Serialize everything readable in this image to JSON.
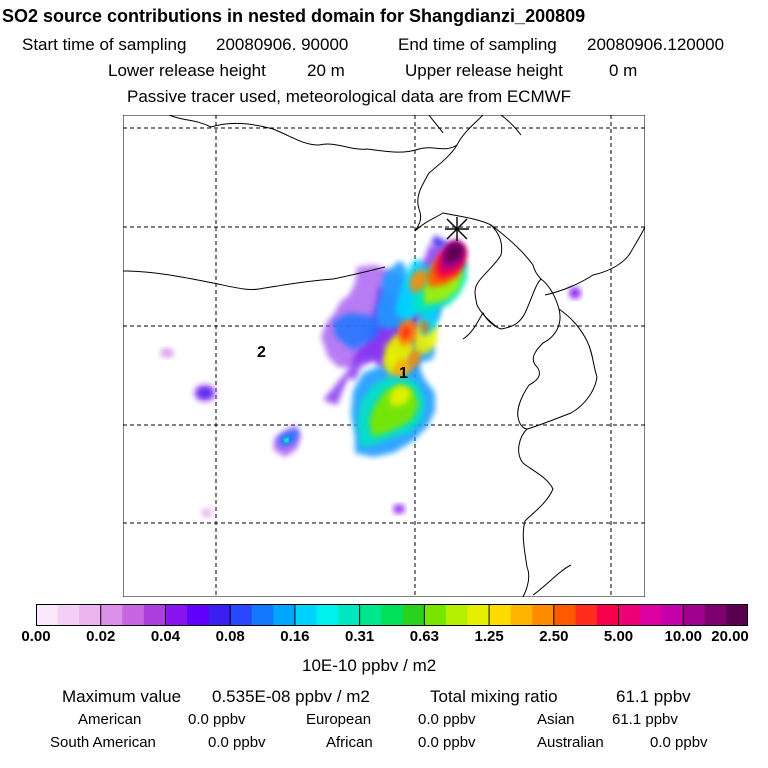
{
  "header": {
    "title": "SO2 source contributions in nested domain for Shangdianzi_200809",
    "start_label": "Start time of sampling",
    "start_value": "20080906. 90000",
    "end_label": "End time of sampling",
    "end_value": "20080906.120000",
    "lower_label": "Lower release height",
    "lower_value": "20 m",
    "upper_label": "Upper release height",
    "upper_value": "0 m",
    "note": "Passive tracer used, meteorological data are from ECMWF"
  },
  "map": {
    "labels": [
      "1",
      "2"
    ],
    "station_marker": "star-marker"
  },
  "colorbar": {
    "ticks": [
      "0.00",
      "0.02",
      "0.04",
      "0.08",
      "0.16",
      "0.31",
      "0.63",
      "1.25",
      "2.50",
      "5.00",
      "10.00",
      "20.00"
    ],
    "unit": "10E-10 ppbv / m2",
    "colors": [
      "#fbe9fb",
      "#f3cff5",
      "#ebb5ef",
      "#dd90e8",
      "#c766e0",
      "#ad3fe0",
      "#8a14f0",
      "#6000f8",
      "#3c1ef0",
      "#2848ff",
      "#1478ff",
      "#00a6ff",
      "#00d2ff",
      "#00f0ee",
      "#00e6c0",
      "#00e68c",
      "#00e05a",
      "#28d21e",
      "#78e600",
      "#b4f000",
      "#e6f000",
      "#ffdc00",
      "#ffb400",
      "#ff8c00",
      "#ff5a00",
      "#ff2d1e",
      "#f5004b",
      "#eb0078",
      "#dc00a0",
      "#c300aa",
      "#a0008c",
      "#7d006e",
      "#5a0050"
    ]
  },
  "chart_data": {
    "type": "heatmap",
    "title": "SO2 source contributions in nested domain for Shangdianzi_200809",
    "colorbar_levels": [
      0.0,
      0.02,
      0.04,
      0.08,
      0.16,
      0.31,
      0.63,
      1.25,
      2.5,
      5.0,
      10.0,
      20.0
    ],
    "colorbar_unit": "10E-10 ppbv / m2",
    "maximum_value": "0.535E-08 ppbv / m2",
    "total_mixing_ratio": "61.1 ppbv"
  },
  "stats": {
    "max_label": "Maximum value",
    "max_value": "0.535E-08 ppbv / m2",
    "total_label": "Total mixing ratio",
    "total_value": "61.1 ppbv",
    "regions": [
      {
        "name": "American",
        "value": "0.0 ppbv"
      },
      {
        "name": "European",
        "value": "0.0 ppbv"
      },
      {
        "name": "Asian",
        "value": "61.1 ppbv"
      },
      {
        "name": "South American",
        "value": "0.0 ppbv"
      },
      {
        "name": "African",
        "value": "0.0 ppbv"
      },
      {
        "name": "Australian",
        "value": "0.0 ppbv"
      }
    ]
  }
}
